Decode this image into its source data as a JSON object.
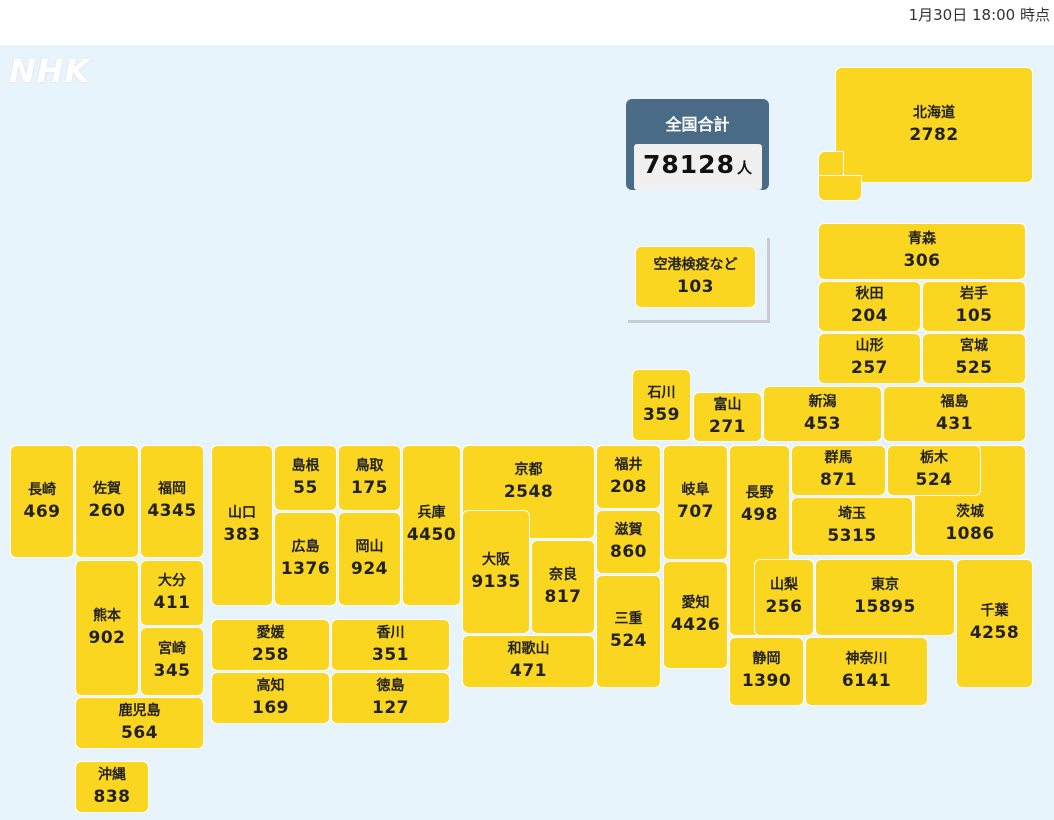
{
  "timestamp": "1月30日 18:00 時点",
  "logo": "NHK",
  "total": {
    "label": "全国合計",
    "count": "78128",
    "unit": "人"
  },
  "airport": {
    "name": "空港検疫など",
    "count": "103"
  },
  "prefectures": {
    "hokkaido": {
      "name": "北海道",
      "count": "2782"
    },
    "aomori": {
      "name": "青森",
      "count": "306"
    },
    "akita": {
      "name": "秋田",
      "count": "204"
    },
    "iwate": {
      "name": "岩手",
      "count": "105"
    },
    "yamagata": {
      "name": "山形",
      "count": "257"
    },
    "miyagi": {
      "name": "宮城",
      "count": "525"
    },
    "ishikawa": {
      "name": "石川",
      "count": "359"
    },
    "toyama": {
      "name": "富山",
      "count": "271"
    },
    "niigata": {
      "name": "新潟",
      "count": "453"
    },
    "fukushima": {
      "name": "福島",
      "count": "431"
    },
    "nagasaki": {
      "name": "長崎",
      "count": "469"
    },
    "saga": {
      "name": "佐賀",
      "count": "260"
    },
    "fukuoka": {
      "name": "福岡",
      "count": "4345"
    },
    "yamaguchi": {
      "name": "山口",
      "count": "383"
    },
    "shimane": {
      "name": "島根",
      "count": "55"
    },
    "tottori": {
      "name": "鳥取",
      "count": "175"
    },
    "hyogo": {
      "name": "兵庫",
      "count": "4450"
    },
    "kyoto": {
      "name": "京都",
      "count": "2548"
    },
    "fukui": {
      "name": "福井",
      "count": "208"
    },
    "gifu": {
      "name": "岐阜",
      "count": "707"
    },
    "nagano": {
      "name": "長野",
      "count": "498"
    },
    "gunma": {
      "name": "群馬",
      "count": "871"
    },
    "tochigi": {
      "name": "栃木",
      "count": "524"
    },
    "hiroshima": {
      "name": "広島",
      "count": "1376"
    },
    "okayama": {
      "name": "岡山",
      "count": "924"
    },
    "osaka": {
      "name": "大阪",
      "count": "9135"
    },
    "shiga": {
      "name": "滋賀",
      "count": "860"
    },
    "saitama": {
      "name": "埼玉",
      "count": "5315"
    },
    "ibaraki": {
      "name": "茨城",
      "count": "1086"
    },
    "kumamoto": {
      "name": "熊本",
      "count": "902"
    },
    "oita": {
      "name": "大分",
      "count": "411"
    },
    "nara": {
      "name": "奈良",
      "count": "817"
    },
    "aichi": {
      "name": "愛知",
      "count": "4426"
    },
    "yamanashi": {
      "name": "山梨",
      "count": "256"
    },
    "tokyo": {
      "name": "東京",
      "count": "15895"
    },
    "chiba": {
      "name": "千葉",
      "count": "4258"
    },
    "miyazaki": {
      "name": "宮崎",
      "count": "345"
    },
    "ehime": {
      "name": "愛媛",
      "count": "258"
    },
    "kagawa": {
      "name": "香川",
      "count": "351"
    },
    "mie": {
      "name": "三重",
      "count": "524"
    },
    "wakayama": {
      "name": "和歌山",
      "count": "471"
    },
    "shizuoka": {
      "name": "静岡",
      "count": "1390"
    },
    "kanagawa": {
      "name": "神奈川",
      "count": "6141"
    },
    "kochi": {
      "name": "高知",
      "count": "169"
    },
    "tokushima": {
      "name": "徳島",
      "count": "127"
    },
    "kagoshima": {
      "name": "鹿児島",
      "count": "564"
    },
    "okinawa": {
      "name": "沖縄",
      "count": "838"
    }
  },
  "colors": {
    "tile": "#fad620",
    "background": "#e8f4fb",
    "total_box": "#4a6b85",
    "frame": "#c6cdd2"
  }
}
